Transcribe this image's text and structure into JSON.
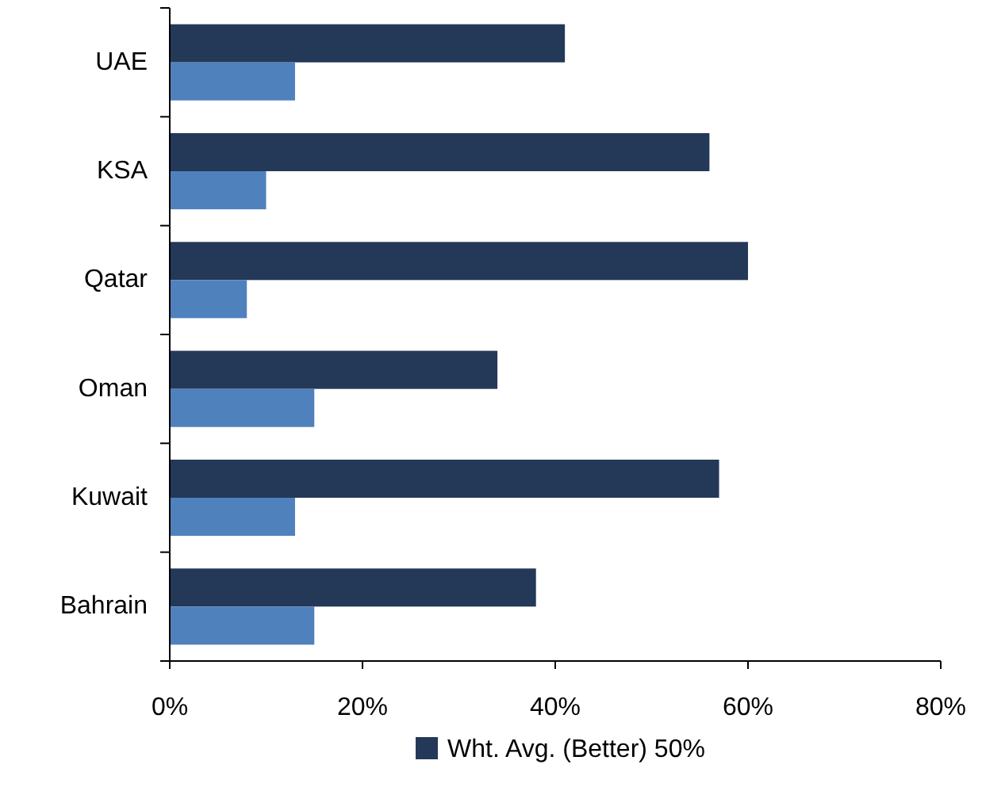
{
  "chart_data": {
    "type": "bar",
    "orientation": "horizontal",
    "categories": [
      "UAE",
      "KSA",
      "Qatar",
      "Oman",
      "Kuwait",
      "Bahrain"
    ],
    "series": [
      {
        "name": "Wht. Avg. (Better) 50%",
        "color": "#243858",
        "values": [
          41,
          56,
          60,
          34,
          57,
          38
        ]
      },
      {
        "color": "#4f81bd",
        "values": [
          13,
          10,
          8,
          15,
          13,
          15
        ]
      }
    ],
    "xlim": [
      0,
      80
    ],
    "xticks": [
      {
        "value": 0,
        "label": "0%"
      },
      {
        "value": 20,
        "label": "20%"
      },
      {
        "value": 40,
        "label": "40%"
      },
      {
        "value": 60,
        "label": "60%"
      },
      {
        "value": 80,
        "label": "80%"
      }
    ],
    "grid": false,
    "legend": "bottom"
  }
}
